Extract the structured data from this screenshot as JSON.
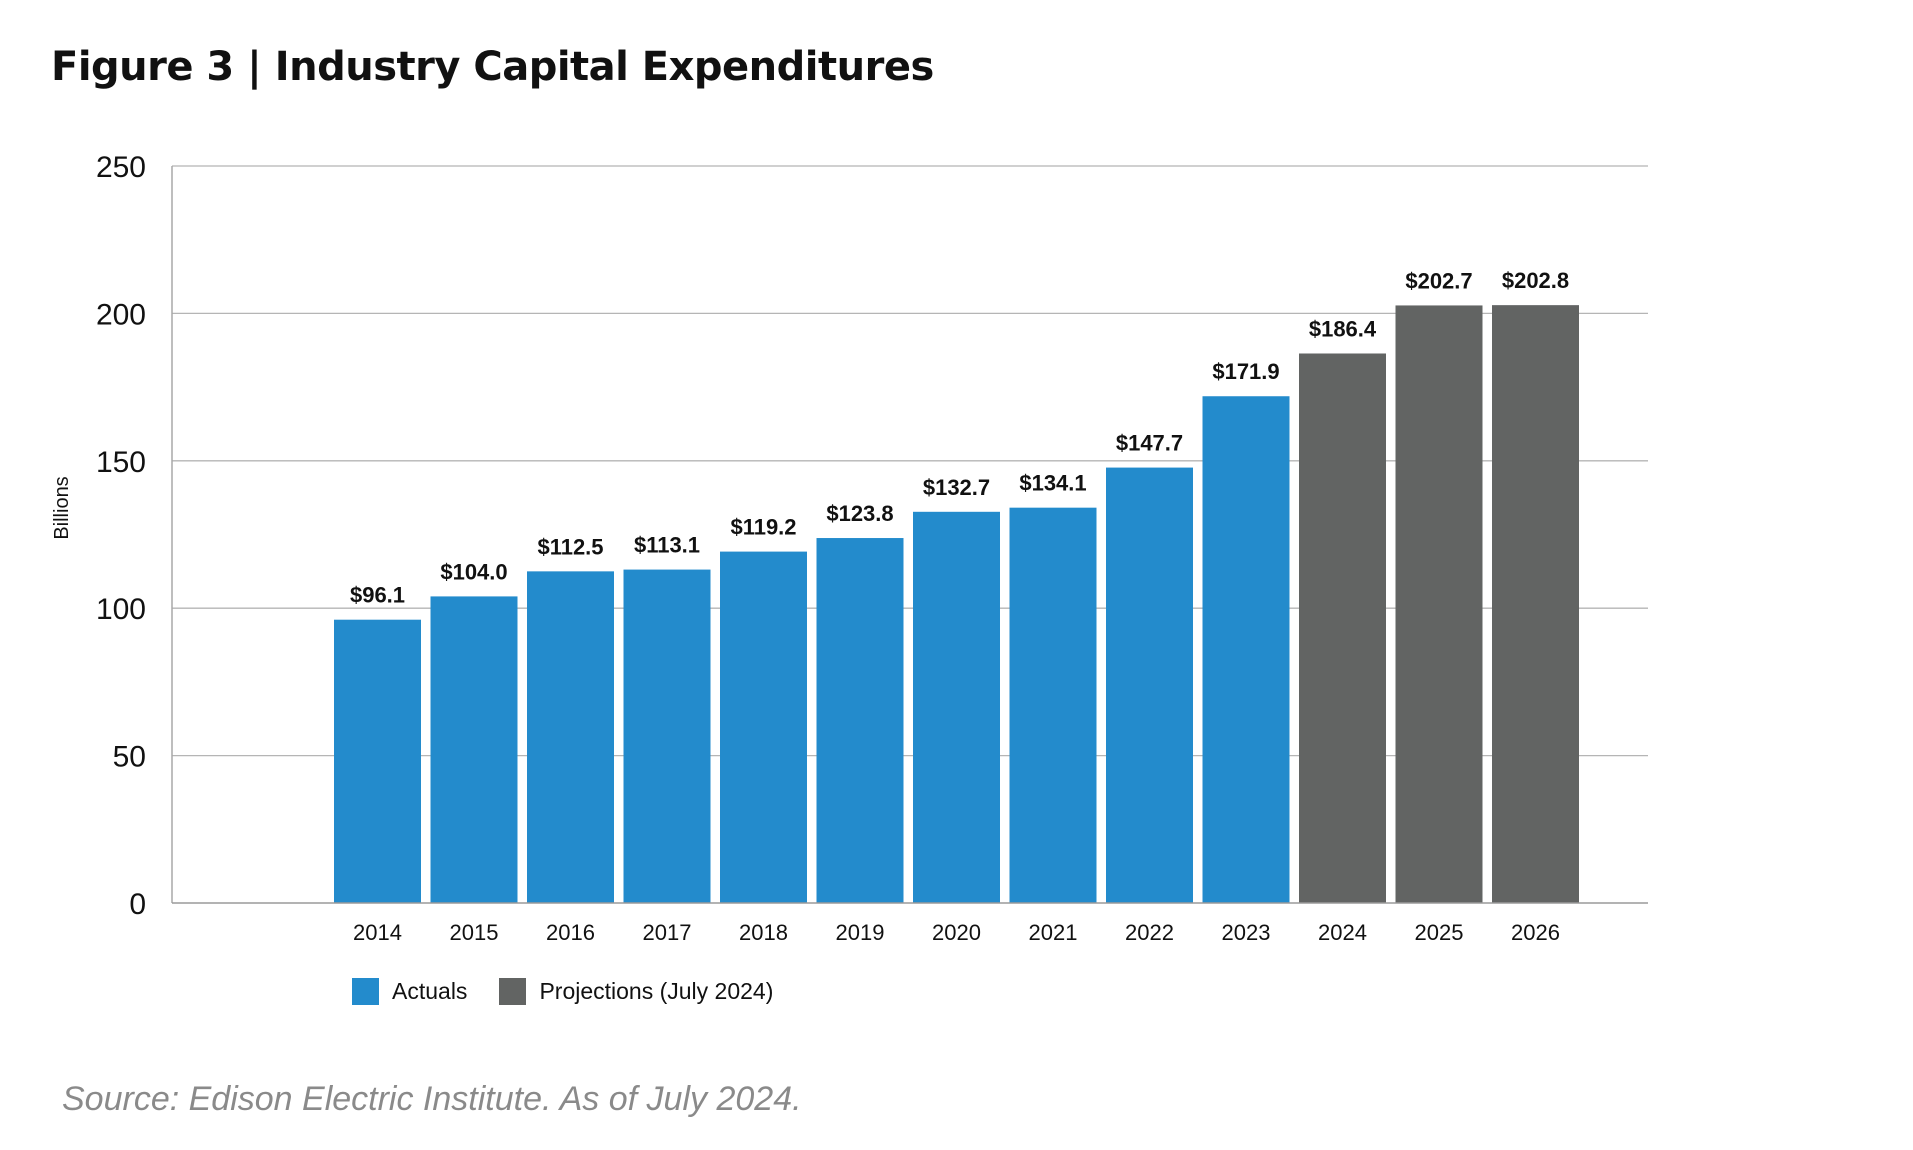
{
  "figure": {
    "title": "Figure 3  |  Industry Capital Expenditures",
    "source": "Source: Edison Electric Institute. As of July 2024."
  },
  "legend": {
    "actuals_label": "Actuals",
    "projections_label": "Projections (July 2024)"
  },
  "colors": {
    "actuals": "#238bcc",
    "projections": "#626463",
    "grid": "#b5b5b5"
  },
  "chart_data": {
    "type": "bar",
    "title": "Figure 3  |  Industry Capital Expenditures",
    "xlabel": "",
    "ylabel": "Billions",
    "ylim": [
      0,
      250
    ],
    "yticks": [
      0,
      50,
      100,
      150,
      200,
      250
    ],
    "grid": true,
    "legend_position": "bottom-left",
    "categories": [
      "2014",
      "2015",
      "2016",
      "2017",
      "2018",
      "2019",
      "2020",
      "2021",
      "2022",
      "2023",
      "2024",
      "2025",
      "2026"
    ],
    "values": [
      96.1,
      104.0,
      112.5,
      113.1,
      119.2,
      123.8,
      132.7,
      134.1,
      147.7,
      171.9,
      186.4,
      202.7,
      202.8
    ],
    "data_labels": [
      "$96.1",
      "$104.0",
      "$112.5",
      "$113.1",
      "$119.2",
      "$123.8",
      "$132.7",
      "$134.1",
      "$147.7",
      "$171.9",
      "$186.4",
      "$202.7",
      "$202.8"
    ],
    "series_kind": [
      "Actuals",
      "Actuals",
      "Actuals",
      "Actuals",
      "Actuals",
      "Actuals",
      "Actuals",
      "Actuals",
      "Actuals",
      "Actuals",
      "Projections (July 2024)",
      "Projections (July 2024)",
      "Projections (July 2024)"
    ]
  }
}
